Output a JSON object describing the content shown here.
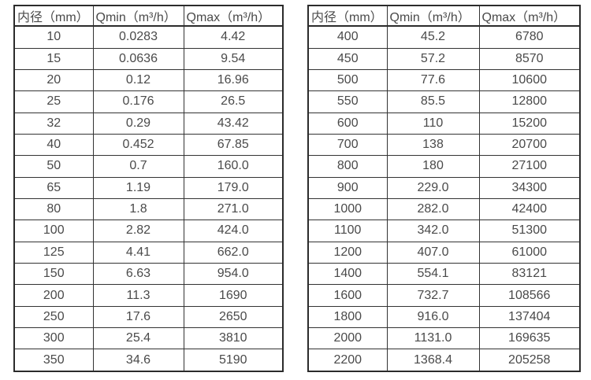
{
  "colors": {
    "text": "#4a4a4a",
    "border": "#333333",
    "outer_border": "#2b2b2b",
    "background": "#ffffff"
  },
  "chart_data": [
    {
      "type": "table",
      "title": "",
      "headers": [
        "内径（mm）",
        "Qmin（m³/h）",
        "Qmax（m³/h）"
      ],
      "rows": [
        [
          "10",
          "0.0283",
          "4.42"
        ],
        [
          "15",
          "0.0636",
          "9.54"
        ],
        [
          "20",
          "0.12",
          "16.96"
        ],
        [
          "25",
          "0.176",
          "26.5"
        ],
        [
          "32",
          "0.29",
          "43.42"
        ],
        [
          "40",
          "0.452",
          "67.85"
        ],
        [
          "50",
          "0.7",
          "160.0"
        ],
        [
          "65",
          "1.19",
          "179.0"
        ],
        [
          "80",
          "1.8",
          "271.0"
        ],
        [
          "100",
          "2.82",
          "424.0"
        ],
        [
          "125",
          "4.41",
          "662.0"
        ],
        [
          "150",
          "6.63",
          "954.0"
        ],
        [
          "200",
          "11.3",
          "1690"
        ],
        [
          "250",
          "17.6",
          "2650"
        ],
        [
          "300",
          "25.4",
          "3810"
        ],
        [
          "350",
          "34.6",
          "5190"
        ]
      ]
    },
    {
      "type": "table",
      "title": "",
      "headers": [
        "内径（mm）",
        "Qmin（m³/h）",
        "Qmax（m³/h）"
      ],
      "rows": [
        [
          "400",
          "45.2",
          "6780"
        ],
        [
          "450",
          "57.2",
          "8570"
        ],
        [
          "500",
          "77.6",
          "10600"
        ],
        [
          "550",
          "85.5",
          "12800"
        ],
        [
          "600",
          "110",
          "15200"
        ],
        [
          "700",
          "138",
          "20700"
        ],
        [
          "800",
          "180",
          "27100"
        ],
        [
          "900",
          "229.0",
          "34300"
        ],
        [
          "1000",
          "282.0",
          "42400"
        ],
        [
          "1100",
          "342.0",
          "51300"
        ],
        [
          "1200",
          "407.0",
          "61000"
        ],
        [
          "1400",
          "554.1",
          "83121"
        ],
        [
          "1600",
          "732.7",
          "108566"
        ],
        [
          "1800",
          "916.0",
          "137404"
        ],
        [
          "2000",
          "1131.0",
          "169635"
        ],
        [
          "2200",
          "1368.4",
          "205258"
        ]
      ]
    }
  ]
}
